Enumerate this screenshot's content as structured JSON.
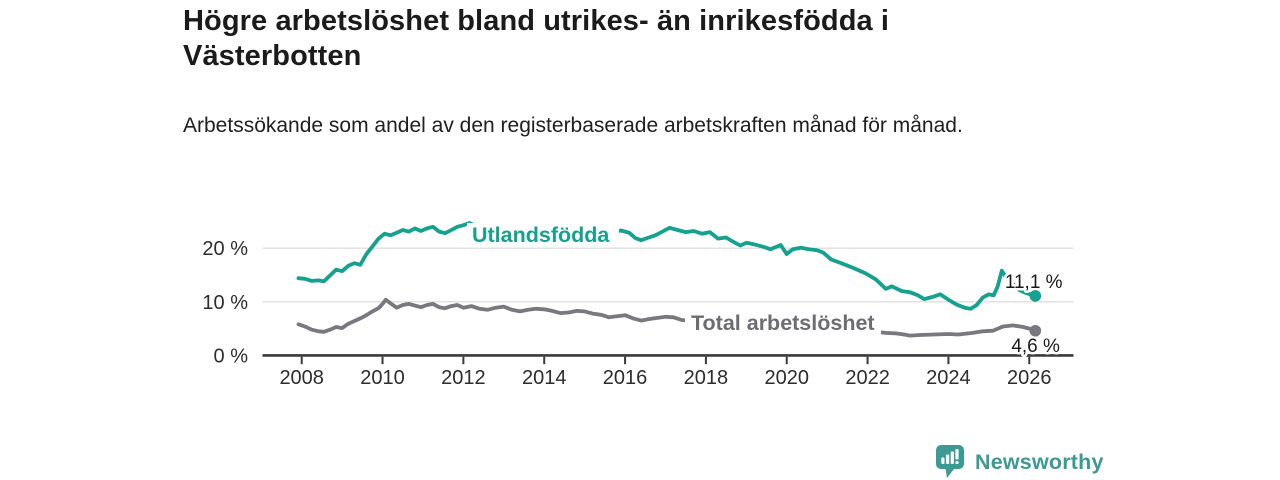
{
  "branding": {
    "name": "Newsworthy",
    "icon": "bar-chart-pin-icon",
    "color": "#3b9a93"
  },
  "chart_data": {
    "type": "line",
    "title": "Högre arbetslöshet bland utrikes- än inrikesfödda i Västerbotten",
    "subtitle": "Arbetssökande som andel av den registerbaserade arbetskraften månad för månad.",
    "unit": "%",
    "grid": "horizontal",
    "legend_position": "inline-labels",
    "xlim": [
      2007.0,
      2027.1
    ],
    "ylim": [
      0,
      27.5
    ],
    "x_axis": {
      "ticks": [
        {
          "value": 2008,
          "label": "2008"
        },
        {
          "value": 2010,
          "label": "2010"
        },
        {
          "value": 2012,
          "label": "2012"
        },
        {
          "value": 2014,
          "label": "2014"
        },
        {
          "value": 2016,
          "label": "2016"
        },
        {
          "value": 2018,
          "label": "2018"
        },
        {
          "value": 2020,
          "label": "2020"
        },
        {
          "value": 2022,
          "label": "2022"
        },
        {
          "value": 2024,
          "label": "2024"
        },
        {
          "value": 2026,
          "label": "2026"
        }
      ]
    },
    "y_axis": {
      "ticks": [
        {
          "value": 0,
          "label": "0 %"
        },
        {
          "value": 10,
          "label": "10 %"
        },
        {
          "value": 20,
          "label": "20 %"
        }
      ]
    },
    "series": [
      {
        "key": "utlandsfodda",
        "name": "Utlandsfödda",
        "color": "#14a28e",
        "label_color": "#14a28e",
        "end_label": "11,1 %",
        "end_value": 11.1,
        "points": [
          [
            2007.92,
            14.4
          ],
          [
            2008.08,
            14.3
          ],
          [
            2008.25,
            13.9
          ],
          [
            2008.42,
            14.0
          ],
          [
            2008.55,
            13.8
          ],
          [
            2008.7,
            14.9
          ],
          [
            2008.85,
            16.0
          ],
          [
            2009.0,
            15.7
          ],
          [
            2009.15,
            16.7
          ],
          [
            2009.3,
            17.2
          ],
          [
            2009.45,
            16.9
          ],
          [
            2009.6,
            18.9
          ],
          [
            2009.75,
            20.3
          ],
          [
            2009.9,
            21.8
          ],
          [
            2010.05,
            22.7
          ],
          [
            2010.2,
            22.4
          ],
          [
            2010.35,
            22.9
          ],
          [
            2010.5,
            23.4
          ],
          [
            2010.65,
            23.1
          ],
          [
            2010.8,
            23.7
          ],
          [
            2010.95,
            23.2
          ],
          [
            2011.1,
            23.7
          ],
          [
            2011.25,
            24.0
          ],
          [
            2011.4,
            23.1
          ],
          [
            2011.55,
            22.8
          ],
          [
            2011.7,
            23.4
          ],
          [
            2011.85,
            24.0
          ],
          [
            2012.0,
            24.3
          ],
          [
            2012.15,
            24.7
          ],
          [
            2012.3,
            24.2
          ],
          [
            2012.5,
            23.8
          ],
          [
            2012.7,
            24.0
          ],
          [
            2012.9,
            23.6
          ],
          [
            2013.1,
            23.8
          ],
          [
            2013.3,
            23.3
          ],
          [
            2013.5,
            23.1
          ],
          [
            2013.7,
            23.5
          ],
          [
            2013.9,
            23.2
          ],
          [
            2014.1,
            23.4
          ],
          [
            2014.3,
            22.9
          ],
          [
            2014.5,
            22.7
          ],
          [
            2014.7,
            23.1
          ],
          [
            2014.9,
            22.8
          ],
          [
            2015.1,
            23.0
          ],
          [
            2015.3,
            22.5
          ],
          [
            2015.5,
            22.7
          ],
          [
            2015.7,
            23.0
          ],
          [
            2015.9,
            23.3
          ],
          [
            2016.1,
            22.9
          ],
          [
            2016.25,
            21.9
          ],
          [
            2016.4,
            21.5
          ],
          [
            2016.55,
            21.9
          ],
          [
            2016.75,
            22.4
          ],
          [
            2016.95,
            23.2
          ],
          [
            2017.1,
            23.8
          ],
          [
            2017.3,
            23.4
          ],
          [
            2017.5,
            23.0
          ],
          [
            2017.7,
            23.2
          ],
          [
            2017.9,
            22.7
          ],
          [
            2018.1,
            23.0
          ],
          [
            2018.3,
            21.8
          ],
          [
            2018.5,
            22.0
          ],
          [
            2018.65,
            21.3
          ],
          [
            2018.85,
            20.5
          ],
          [
            2019.0,
            21.0
          ],
          [
            2019.2,
            20.7
          ],
          [
            2019.4,
            20.3
          ],
          [
            2019.6,
            19.8
          ],
          [
            2019.85,
            20.6
          ],
          [
            2020.0,
            18.9
          ],
          [
            2020.15,
            19.8
          ],
          [
            2020.35,
            20.1
          ],
          [
            2020.55,
            19.8
          ],
          [
            2020.75,
            19.6
          ],
          [
            2020.9,
            19.2
          ],
          [
            2021.1,
            17.9
          ],
          [
            2021.35,
            17.2
          ],
          [
            2021.65,
            16.3
          ],
          [
            2021.95,
            15.3
          ],
          [
            2022.2,
            14.2
          ],
          [
            2022.45,
            12.4
          ],
          [
            2022.6,
            12.9
          ],
          [
            2022.85,
            12.0
          ],
          [
            2023.05,
            11.8
          ],
          [
            2023.25,
            11.2
          ],
          [
            2023.4,
            10.5
          ],
          [
            2023.6,
            10.9
          ],
          [
            2023.8,
            11.4
          ],
          [
            2024.0,
            10.4
          ],
          [
            2024.2,
            9.5
          ],
          [
            2024.4,
            8.9
          ],
          [
            2024.55,
            8.7
          ],
          [
            2024.7,
            9.4
          ],
          [
            2024.85,
            10.8
          ],
          [
            2025.0,
            11.4
          ],
          [
            2025.12,
            11.2
          ],
          [
            2025.22,
            12.9
          ],
          [
            2025.32,
            15.8
          ],
          [
            2025.45,
            14.3
          ],
          [
            2025.6,
            13.3
          ],
          [
            2025.75,
            12.2
          ],
          [
            2025.9,
            11.7
          ],
          [
            2026.02,
            11.4
          ],
          [
            2026.15,
            11.1
          ]
        ]
      },
      {
        "key": "total-arbetsloshet",
        "name": "Total arbetslöshet",
        "color": "#78787e",
        "label_color": "#6c6c72",
        "end_label": "4,6 %",
        "end_value": 4.6,
        "points": [
          [
            2007.92,
            5.8
          ],
          [
            2008.08,
            5.4
          ],
          [
            2008.25,
            4.8
          ],
          [
            2008.42,
            4.5
          ],
          [
            2008.55,
            4.4
          ],
          [
            2008.7,
            4.8
          ],
          [
            2008.85,
            5.3
          ],
          [
            2009.0,
            5.1
          ],
          [
            2009.15,
            5.9
          ],
          [
            2009.3,
            6.4
          ],
          [
            2009.45,
            6.9
          ],
          [
            2009.6,
            7.5
          ],
          [
            2009.75,
            8.2
          ],
          [
            2009.9,
            8.8
          ],
          [
            2010.0,
            9.6
          ],
          [
            2010.08,
            10.4
          ],
          [
            2010.2,
            9.7
          ],
          [
            2010.35,
            8.9
          ],
          [
            2010.5,
            9.4
          ],
          [
            2010.65,
            9.6
          ],
          [
            2010.8,
            9.3
          ],
          [
            2010.95,
            9.0
          ],
          [
            2011.1,
            9.4
          ],
          [
            2011.25,
            9.6
          ],
          [
            2011.4,
            9.0
          ],
          [
            2011.55,
            8.8
          ],
          [
            2011.7,
            9.2
          ],
          [
            2011.85,
            9.4
          ],
          [
            2012.0,
            8.9
          ],
          [
            2012.2,
            9.2
          ],
          [
            2012.4,
            8.7
          ],
          [
            2012.6,
            8.5
          ],
          [
            2012.8,
            8.9
          ],
          [
            2013.0,
            9.1
          ],
          [
            2013.2,
            8.5
          ],
          [
            2013.4,
            8.2
          ],
          [
            2013.6,
            8.5
          ],
          [
            2013.8,
            8.7
          ],
          [
            2014.0,
            8.6
          ],
          [
            2014.2,
            8.3
          ],
          [
            2014.4,
            7.9
          ],
          [
            2014.6,
            8.0
          ],
          [
            2014.8,
            8.3
          ],
          [
            2015.0,
            8.2
          ],
          [
            2015.2,
            7.8
          ],
          [
            2015.4,
            7.6
          ],
          [
            2015.6,
            7.1
          ],
          [
            2015.8,
            7.3
          ],
          [
            2016.0,
            7.5
          ],
          [
            2016.2,
            6.9
          ],
          [
            2016.4,
            6.5
          ],
          [
            2016.6,
            6.8
          ],
          [
            2016.8,
            7.0
          ],
          [
            2017.0,
            7.2
          ],
          [
            2017.2,
            7.1
          ],
          [
            2017.4,
            6.6
          ],
          [
            2017.6,
            6.5
          ],
          [
            2017.8,
            6.8
          ],
          [
            2018.0,
            6.7
          ],
          [
            2018.3,
            6.3
          ],
          [
            2018.6,
            6.2
          ],
          [
            2018.9,
            6.4
          ],
          [
            2019.2,
            6.2
          ],
          [
            2019.5,
            6.0
          ],
          [
            2019.8,
            5.9
          ],
          [
            2020.1,
            5.8
          ],
          [
            2020.4,
            5.6
          ],
          [
            2020.7,
            5.4
          ],
          [
            2021.0,
            5.1
          ],
          [
            2021.3,
            4.8
          ],
          [
            2021.6,
            4.6
          ],
          [
            2021.9,
            4.5
          ],
          [
            2022.2,
            4.4
          ],
          [
            2022.45,
            4.2
          ],
          [
            2022.7,
            4.1
          ],
          [
            2022.9,
            3.9
          ],
          [
            2023.05,
            3.7
          ],
          [
            2023.3,
            3.8
          ],
          [
            2023.65,
            3.9
          ],
          [
            2024.0,
            4.0
          ],
          [
            2024.25,
            3.9
          ],
          [
            2024.6,
            4.2
          ],
          [
            2024.85,
            4.5
          ],
          [
            2025.1,
            4.6
          ],
          [
            2025.35,
            5.4
          ],
          [
            2025.6,
            5.6
          ],
          [
            2025.85,
            5.3
          ],
          [
            2026.0,
            5.0
          ],
          [
            2026.15,
            4.6
          ]
        ]
      }
    ],
    "colors": {
      "axis": "#3a3a3a",
      "gridline": "#d9d9d9",
      "tick_label": "#2d2d2d",
      "end_label": "#1a1a1a"
    }
  }
}
